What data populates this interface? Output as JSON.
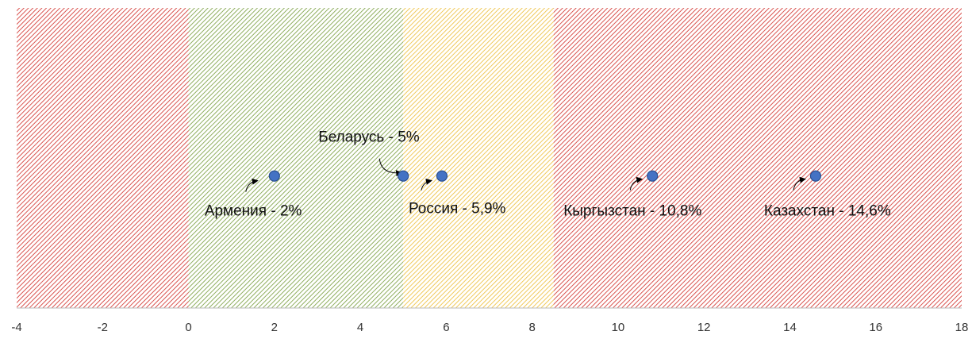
{
  "chart_data": {
    "type": "scatter",
    "xlim": [
      -4,
      18
    ],
    "xticks": [
      -4,
      -2,
      0,
      2,
      4,
      6,
      8,
      10,
      12,
      14,
      16,
      18
    ],
    "ylim": [
      0,
      1
    ],
    "grid": false,
    "bands": [
      {
        "from": -4,
        "to": 0,
        "color": "#d9534f"
      },
      {
        "from": 0,
        "to": 5,
        "color": "#8fae5f"
      },
      {
        "from": 5,
        "to": 8.5,
        "color": "#f0c95a"
      },
      {
        "from": 8.5,
        "to": 18,
        "color": "#d9534f"
      }
    ],
    "series": [
      {
        "color": "#4472c4",
        "x": [
          2,
          5,
          5.9,
          10.8,
          14.6
        ],
        "values": [
          0.44,
          0.44,
          0.44,
          0.44,
          0.44
        ],
        "labels": [
          "Армения - 2%",
          "Беларусь - 5%",
          "Россия - 5,9%",
          "Кыргызстан - 10,8%",
          "Казахстан - 14,6%"
        ]
      }
    ]
  }
}
